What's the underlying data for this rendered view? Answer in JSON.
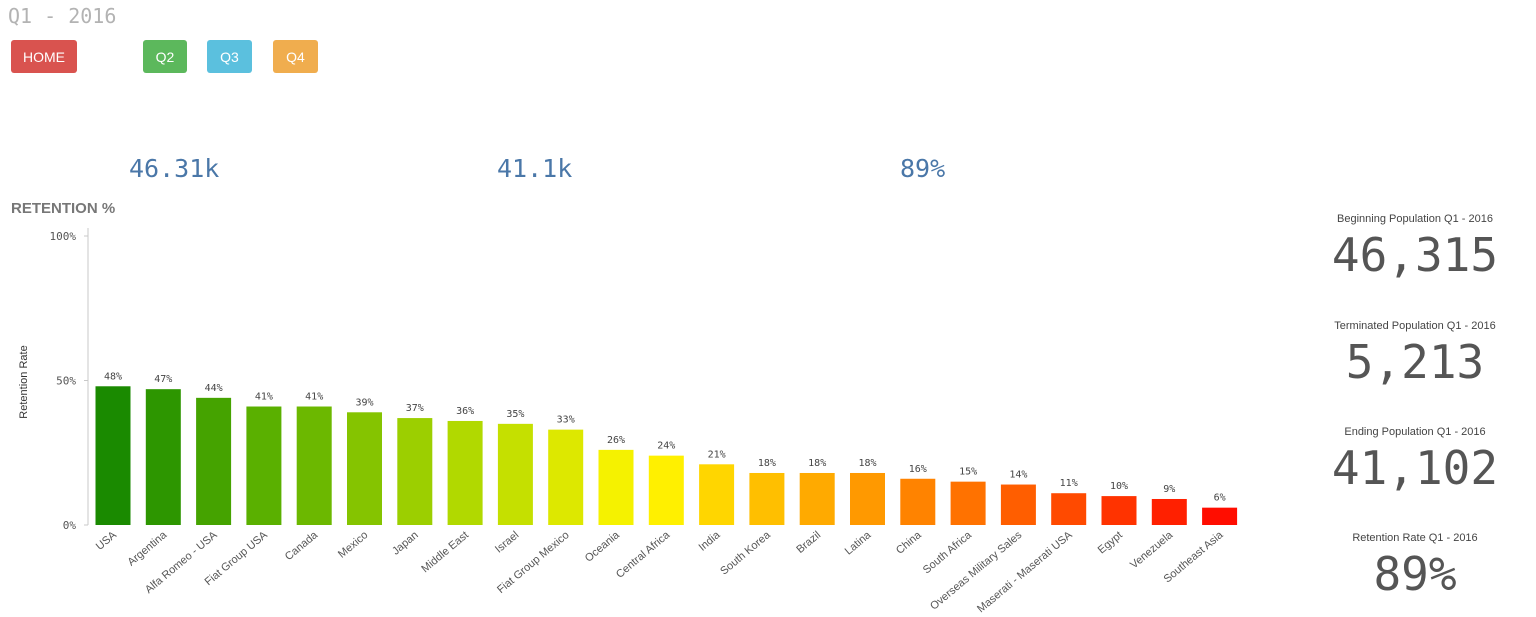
{
  "header": {
    "title": "Q1 - 2016"
  },
  "nav": {
    "home_label": "HOME",
    "home_color": "#d9534f",
    "q2_label": "Q2",
    "q2_color": "#5cb85c",
    "q3_label": "Q3",
    "q3_color": "#5bc0de",
    "q4_label": "Q4",
    "q4_color": "#f0ad4e"
  },
  "kpis": {
    "beginning": "46.31k",
    "ending": "41.1k",
    "retention": "89%",
    "color": "#4a77a8"
  },
  "side_panel": {
    "beginning_label": "Beginning Population Q1 - 2016",
    "beginning_value": "46,315",
    "terminated_label": "Terminated Population Q1 - 2016",
    "terminated_value": "5,213",
    "ending_label": "Ending Population Q1 - 2016",
    "ending_value": "41,102",
    "rate_label": "Retention Rate Q1 - 2016",
    "rate_value": "89%"
  },
  "chart_title": "RETENTION %",
  "chart_data": {
    "type": "bar",
    "ylabel": "Retention Rate",
    "ylim": [
      0,
      100
    ],
    "yticks": [
      "0%",
      "50%",
      "100%"
    ],
    "grid": false,
    "categories": [
      "USA",
      "Argentina",
      "Alfa Romeo - USA",
      "Fiat Group USA",
      "Canada",
      "Mexico",
      "Japan",
      "Middle East",
      "Israel",
      "Fiat Group Mexico",
      "Oceania",
      "Central Africa",
      "India",
      "South Korea",
      "Brazil",
      "Latina",
      "China",
      "South Africa",
      "Overseas Military Sales",
      "Maserati - Maserati USA",
      "Egypt",
      "Venezuela",
      "Southeast Asia"
    ],
    "values": [
      48,
      47,
      44,
      41,
      41,
      39,
      37,
      36,
      35,
      33,
      26,
      24,
      21,
      18,
      18,
      18,
      16,
      15,
      14,
      11,
      10,
      9,
      6
    ],
    "value_labels": [
      "48%",
      "47%",
      "44%",
      "41%",
      "41%",
      "39%",
      "37%",
      "36%",
      "35%",
      "33%",
      "26%",
      "24%",
      "21%",
      "18%",
      "18%",
      "18%",
      "16%",
      "15%",
      "14%",
      "11%",
      "10%",
      "9%",
      "6%"
    ],
    "colors": [
      "#1a8a00",
      "#2d9600",
      "#45a300",
      "#5ab000",
      "#6cb800",
      "#85c400",
      "#9ccf00",
      "#b1d900",
      "#c5e000",
      "#dde800",
      "#f5f200",
      "#fff000",
      "#ffd600",
      "#ffbf00",
      "#ffaa00",
      "#ff9900",
      "#ff8300",
      "#ff7200",
      "#ff5e00",
      "#ff4a00",
      "#ff3300",
      "#ff2000",
      "#ff0d00"
    ]
  }
}
